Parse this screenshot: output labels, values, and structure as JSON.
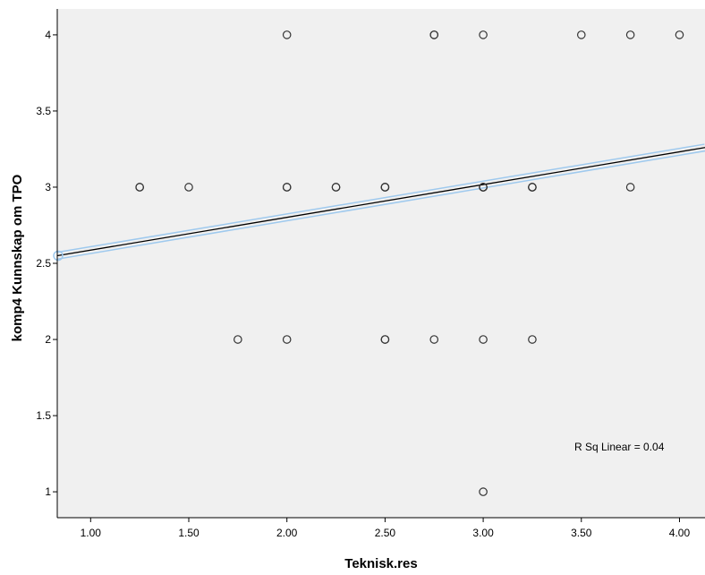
{
  "chart_data": {
    "type": "scatter",
    "xlabel": "Teknisk.res",
    "ylabel": "komp4 Kunnskap om TPO",
    "xlim": [
      0.83,
      4.13
    ],
    "ylim": [
      0.83,
      4.17
    ],
    "xticks": [
      "1.00",
      "1.50",
      "2.00",
      "2.50",
      "3.00",
      "3.50",
      "4.00"
    ],
    "xtick_values": [
      1.0,
      1.5,
      2.0,
      2.5,
      3.0,
      3.5,
      4.0
    ],
    "yticks": [
      "1",
      "1.5",
      "2",
      "2.5",
      "3",
      "3.5",
      "4"
    ],
    "ytick_values": [
      1,
      1.5,
      2,
      2.5,
      3,
      3.5,
      4
    ],
    "points": [
      {
        "x": 2.0,
        "y": 4
      },
      {
        "x": 2.75,
        "y": 4
      },
      {
        "x": 2.75,
        "y": 4
      },
      {
        "x": 3.0,
        "y": 4
      },
      {
        "x": 3.5,
        "y": 4
      },
      {
        "x": 3.75,
        "y": 4
      },
      {
        "x": 4.0,
        "y": 4
      },
      {
        "x": 1.25,
        "y": 3
      },
      {
        "x": 1.25,
        "y": 3
      },
      {
        "x": 1.5,
        "y": 3
      },
      {
        "x": 2.0,
        "y": 3
      },
      {
        "x": 2.0,
        "y": 3
      },
      {
        "x": 2.25,
        "y": 3
      },
      {
        "x": 2.25,
        "y": 3
      },
      {
        "x": 2.5,
        "y": 3
      },
      {
        "x": 2.5,
        "y": 3
      },
      {
        "x": 2.5,
        "y": 3
      },
      {
        "x": 3.0,
        "y": 3
      },
      {
        "x": 3.0,
        "y": 3
      },
      {
        "x": 3.0,
        "y": 3
      },
      {
        "x": 3.0,
        "y": 3
      },
      {
        "x": 3.25,
        "y": 3
      },
      {
        "x": 3.25,
        "y": 3
      },
      {
        "x": 3.25,
        "y": 3
      },
      {
        "x": 3.75,
        "y": 3
      },
      {
        "x": 1.75,
        "y": 2
      },
      {
        "x": 2.0,
        "y": 2
      },
      {
        "x": 2.5,
        "y": 2
      },
      {
        "x": 2.5,
        "y": 2
      },
      {
        "x": 2.75,
        "y": 2
      },
      {
        "x": 3.0,
        "y": 2
      },
      {
        "x": 3.25,
        "y": 2
      },
      {
        "x": 3.0,
        "y": 1
      }
    ],
    "fit_line": {
      "x": [
        0.83,
        4.13
      ],
      "y": [
        2.55,
        3.26
      ]
    },
    "annotation": "R Sq Linear = 0.04",
    "grid": false,
    "colors": {
      "plot_bg": "#f0f0f0",
      "marker": "#333333",
      "fit": "#000000",
      "fit_halo": "#9ec9ee"
    }
  }
}
